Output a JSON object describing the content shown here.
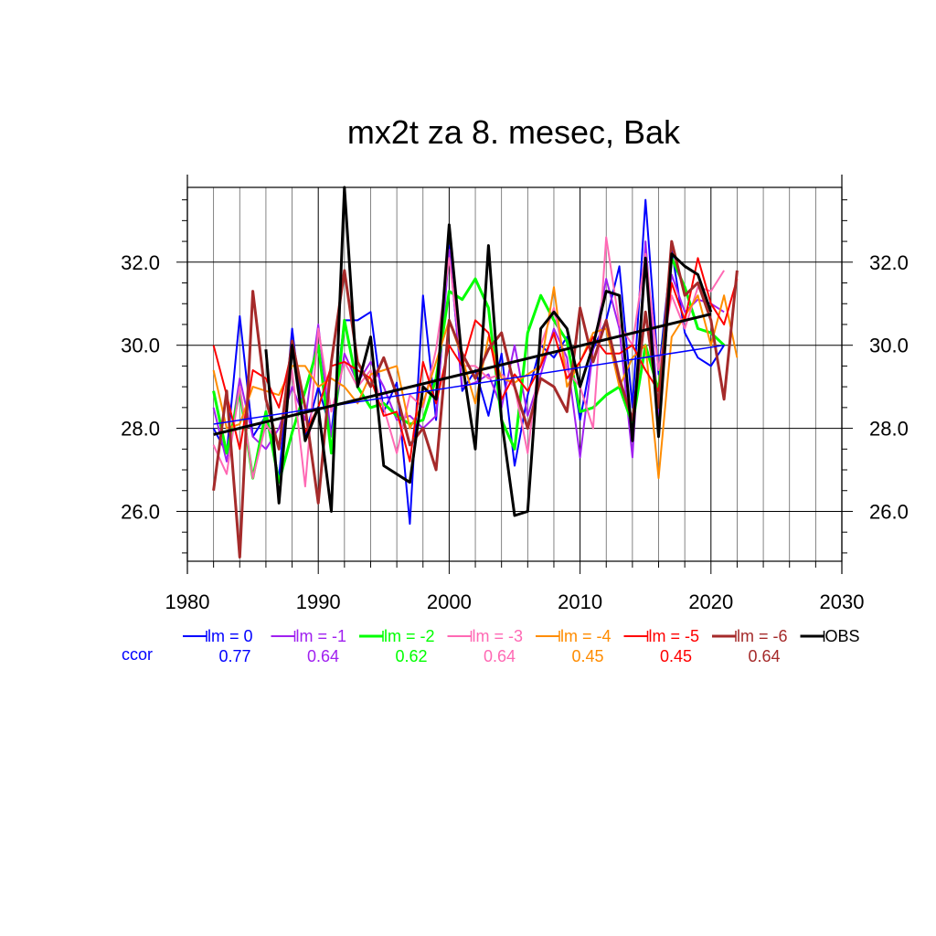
{
  "chart_data": {
    "type": "line",
    "title": "mx2t za 8. mesec, Bak",
    "xlabel": "",
    "ylabel": "",
    "xlim": [
      1980,
      2030
    ],
    "ylim": [
      24.8,
      33.8
    ],
    "x_ticks": [
      1980,
      1990,
      2000,
      2010,
      2020,
      2030
    ],
    "x_tick_labels": [
      "1980",
      "1990",
      "2000",
      "2010",
      "2020",
      "2030"
    ],
    "y_ticks": [
      26,
      28,
      30,
      32
    ],
    "y_tick_labels": [
      "26.0",
      "28.0",
      "30.0",
      "32.0"
    ],
    "grid": true,
    "ccor_label": "ccor",
    "ccor_color": "#0000ff",
    "legend_placement": "bottom",
    "series": [
      {
        "name": "lm = 0",
        "ccor": "0.77",
        "color": "#0000ff",
        "width": 2,
        "x": [
          1982,
          1983,
          1984,
          1985,
          1986,
          1987,
          1988,
          1989,
          1990,
          1991,
          1992,
          1993,
          1994,
          1995,
          1996,
          1997,
          1998,
          1999,
          2000,
          2001,
          2002,
          2003,
          2004,
          2005,
          2006,
          2007,
          2008,
          2009,
          2010,
          2011,
          2012,
          2013,
          2014,
          2015,
          2016,
          2017,
          2018,
          2019,
          2020,
          2021
        ],
        "y": [
          28.0,
          27.4,
          30.7,
          27.8,
          28.3,
          26.8,
          30.4,
          27.8,
          29.0,
          27.9,
          30.6,
          30.6,
          30.8,
          28.4,
          29.1,
          25.7,
          31.2,
          28.2,
          32.4,
          28.9,
          29.4,
          28.3,
          29.8,
          27.1,
          28.8,
          30.0,
          29.7,
          30.2,
          28.2,
          29.9,
          30.6,
          31.9,
          28.5,
          33.5,
          29.3,
          32.3,
          30.3,
          29.7,
          29.5,
          30.0
        ]
      },
      {
        "name": "lm = -1",
        "ccor": "0.64",
        "color": "#a020f0",
        "width": 2,
        "x": [
          1982,
          1983,
          1984,
          1985,
          1986,
          1987,
          1988,
          1989,
          1990,
          1991,
          1992,
          1993,
          1994,
          1995,
          1996,
          1997,
          1998,
          1999,
          2000,
          2001,
          2002,
          2003,
          2004,
          2005,
          2006,
          2007,
          2008,
          2009,
          2010,
          2011,
          2012,
          2013,
          2014,
          2015,
          2016,
          2017,
          2018,
          2019,
          2020,
          2021
        ],
        "y": [
          28.5,
          27.2,
          29.2,
          27.8,
          27.5,
          28.0,
          29.0,
          28.2,
          30.5,
          27.8,
          29.8,
          29.1,
          29.6,
          29.0,
          28.2,
          28.3,
          28.0,
          28.3,
          32.3,
          29.0,
          29.1,
          29.3,
          28.5,
          30.0,
          28.3,
          29.3,
          30.4,
          29.7,
          27.3,
          29.9,
          31.6,
          30.4,
          27.3,
          32.5,
          28.3,
          31.7,
          30.8,
          31.1,
          31.0,
          30.8
        ]
      },
      {
        "name": "lm = -2",
        "ccor": "0.62",
        "color": "#00ff00",
        "width": 3,
        "x": [
          1982,
          1983,
          1984,
          1985,
          1986,
          1987,
          1988,
          1989,
          1990,
          1991,
          1992,
          1993,
          1994,
          1995,
          1996,
          1997,
          1998,
          1999,
          2000,
          2001,
          2002,
          2003,
          2004,
          2005,
          2006,
          2007,
          2008,
          2009,
          2010,
          2011,
          2012,
          2013,
          2014,
          2015,
          2016,
          2017,
          2018,
          2019,
          2020,
          2021
        ],
        "y": [
          28.9,
          27.4,
          28.9,
          26.8,
          28.4,
          26.7,
          27.9,
          28.9,
          30.0,
          27.4,
          30.6,
          29.0,
          28.5,
          28.6,
          28.3,
          28.1,
          28.2,
          29.2,
          31.3,
          31.1,
          31.6,
          30.9,
          28.2,
          27.5,
          30.3,
          31.2,
          30.6,
          30.1,
          28.4,
          28.5,
          28.8,
          29.0,
          28.1,
          30.0,
          28.9,
          32.1,
          31.4,
          30.4,
          30.3,
          30.0
        ]
      },
      {
        "name": "lm = -3",
        "ccor": "0.64",
        "color": "#ff69b4",
        "width": 2,
        "x": [
          1982,
          1983,
          1984,
          1985,
          1986,
          1987,
          1988,
          1989,
          1990,
          1991,
          1992,
          1993,
          1994,
          1995,
          1996,
          1997,
          1998,
          1999,
          2000,
          2001,
          2002,
          2003,
          2004,
          2005,
          2006,
          2007,
          2008,
          2009,
          2010,
          2011,
          2012,
          2013,
          2014,
          2015,
          2016,
          2017,
          2018,
          2019,
          2020,
          2021
        ],
        "y": [
          27.6,
          26.9,
          29.0,
          26.8,
          28.1,
          27.6,
          29.4,
          26.6,
          30.4,
          28.4,
          29.6,
          29.0,
          29.4,
          28.5,
          27.4,
          28.8,
          28.5,
          29.9,
          32.1,
          29.5,
          29.5,
          29.2,
          29.3,
          29.0,
          27.4,
          30.0,
          30.9,
          29.4,
          29.0,
          28.0,
          32.6,
          30.5,
          30.0,
          32.2,
          29.4,
          31.2,
          30.4,
          31.4,
          31.3,
          31.8
        ]
      },
      {
        "name": "lm = -4",
        "ccor": "0.45",
        "color": "#ff8c00",
        "width": 2,
        "x": [
          1982,
          1983,
          1984,
          1985,
          1986,
          1987,
          1988,
          1989,
          1990,
          1991,
          1992,
          1993,
          1994,
          1995,
          1996,
          1997,
          1998,
          1999,
          2000,
          2001,
          2002,
          2003,
          2004,
          2005,
          2006,
          2007,
          2008,
          2009,
          2010,
          2011,
          2012,
          2013,
          2014,
          2015,
          2016,
          2017,
          2018,
          2019,
          2020,
          2021,
          2022
        ],
        "y": [
          29.4,
          28.0,
          28.1,
          29.0,
          28.9,
          28.8,
          29.5,
          29.5,
          29.0,
          29.2,
          29.0,
          28.6,
          29.3,
          29.4,
          29.5,
          28.0,
          28.6,
          29.6,
          30.6,
          29.7,
          28.6,
          30.2,
          29.2,
          29.1,
          29.3,
          29.5,
          31.4,
          29.0,
          29.6,
          30.3,
          30.4,
          29.0,
          29.7,
          30.0,
          26.8,
          30.2,
          30.7,
          31.2,
          30.0,
          31.2,
          29.7
        ]
      },
      {
        "name": "lm = -5",
        "ccor": "0.45",
        "color": "#ff0000",
        "width": 2,
        "x": [
          1982,
          1983,
          1984,
          1985,
          1986,
          1987,
          1988,
          1989,
          1990,
          1991,
          1992,
          1993,
          1994,
          1995,
          1996,
          1997,
          1998,
          1999,
          2000,
          2001,
          2002,
          2003,
          2004,
          2005,
          2006,
          2007,
          2008,
          2009,
          2010,
          2011,
          2012,
          2013,
          2014,
          2015,
          2016,
          2017,
          2018,
          2019,
          2020,
          2021,
          2022
        ],
        "y": [
          30.0,
          28.8,
          27.5,
          29.4,
          29.2,
          28.5,
          29.9,
          27.9,
          28.5,
          29.5,
          29.6,
          29.4,
          29.2,
          28.3,
          28.4,
          27.2,
          29.6,
          28.6,
          30.0,
          29.5,
          30.6,
          30.3,
          28.7,
          29.3,
          28.9,
          29.5,
          30.3,
          29.2,
          29.6,
          30.2,
          29.8,
          29.8,
          30.0,
          29.4,
          28.9,
          31.5,
          30.6,
          32.1,
          31.0,
          30.5,
          31.6
        ]
      },
      {
        "name": "lm = -6",
        "ccor": "0.64",
        "color": "#a52a2a",
        "width": 3,
        "x": [
          1982,
          1983,
          1984,
          1985,
          1986,
          1987,
          1988,
          1989,
          1990,
          1991,
          1992,
          1993,
          1994,
          1995,
          1996,
          1997,
          1998,
          1999,
          2000,
          2001,
          2002,
          2003,
          2004,
          2005,
          2006,
          2007,
          2008,
          2009,
          2010,
          2011,
          2012,
          2013,
          2014,
          2015,
          2016,
          2017,
          2018,
          2019,
          2020,
          2021,
          2022
        ],
        "y": [
          26.5,
          28.9,
          24.9,
          31.3,
          28.7,
          27.5,
          30.1,
          28.5,
          26.2,
          29.6,
          31.8,
          29.6,
          29.0,
          29.7,
          28.8,
          27.6,
          28.0,
          27.0,
          30.6,
          29.8,
          29.2,
          29.9,
          30.3,
          29.0,
          28.0,
          29.2,
          29.0,
          28.4,
          30.9,
          29.6,
          30.6,
          29.2,
          28.2,
          30.8,
          28.5,
          32.5,
          31.2,
          31.5,
          30.6,
          28.7,
          31.8
        ]
      },
      {
        "name": "OBS",
        "ccor": "",
        "color": "#000000",
        "width": 3,
        "x": [
          1986,
          1987,
          1988,
          1989,
          1990,
          1991,
          1992,
          1993,
          1994,
          1995,
          1996,
          1997,
          1998,
          1999,
          2000,
          2001,
          2002,
          2003,
          2004,
          2005,
          2006,
          2007,
          2008,
          2009,
          2010,
          2011,
          2012,
          2013,
          2014,
          2015,
          2016,
          2017,
          2018,
          2019,
          2020
        ],
        "y": [
          29.9,
          26.2,
          30.0,
          27.7,
          28.5,
          26.0,
          33.8,
          29.0,
          30.2,
          27.1,
          26.9,
          26.7,
          29.0,
          28.7,
          32.9,
          29.6,
          27.5,
          32.4,
          28.2,
          25.9,
          26.0,
          30.4,
          30.8,
          30.4,
          29.0,
          30.0,
          31.3,
          31.2,
          27.7,
          32.1,
          27.8,
          32.2,
          31.9,
          31.7,
          30.8
        ]
      }
    ],
    "trend_lines": [
      {
        "series": "lm = 0",
        "color": "#0000ff",
        "width": 1.5,
        "x": [
          1982,
          2021
        ],
        "y": [
          28.1,
          30.0
        ]
      },
      {
        "series": "OBS",
        "color": "#000000",
        "width": 3,
        "x": [
          1982,
          2020
        ],
        "y": [
          27.85,
          30.75
        ]
      }
    ]
  }
}
